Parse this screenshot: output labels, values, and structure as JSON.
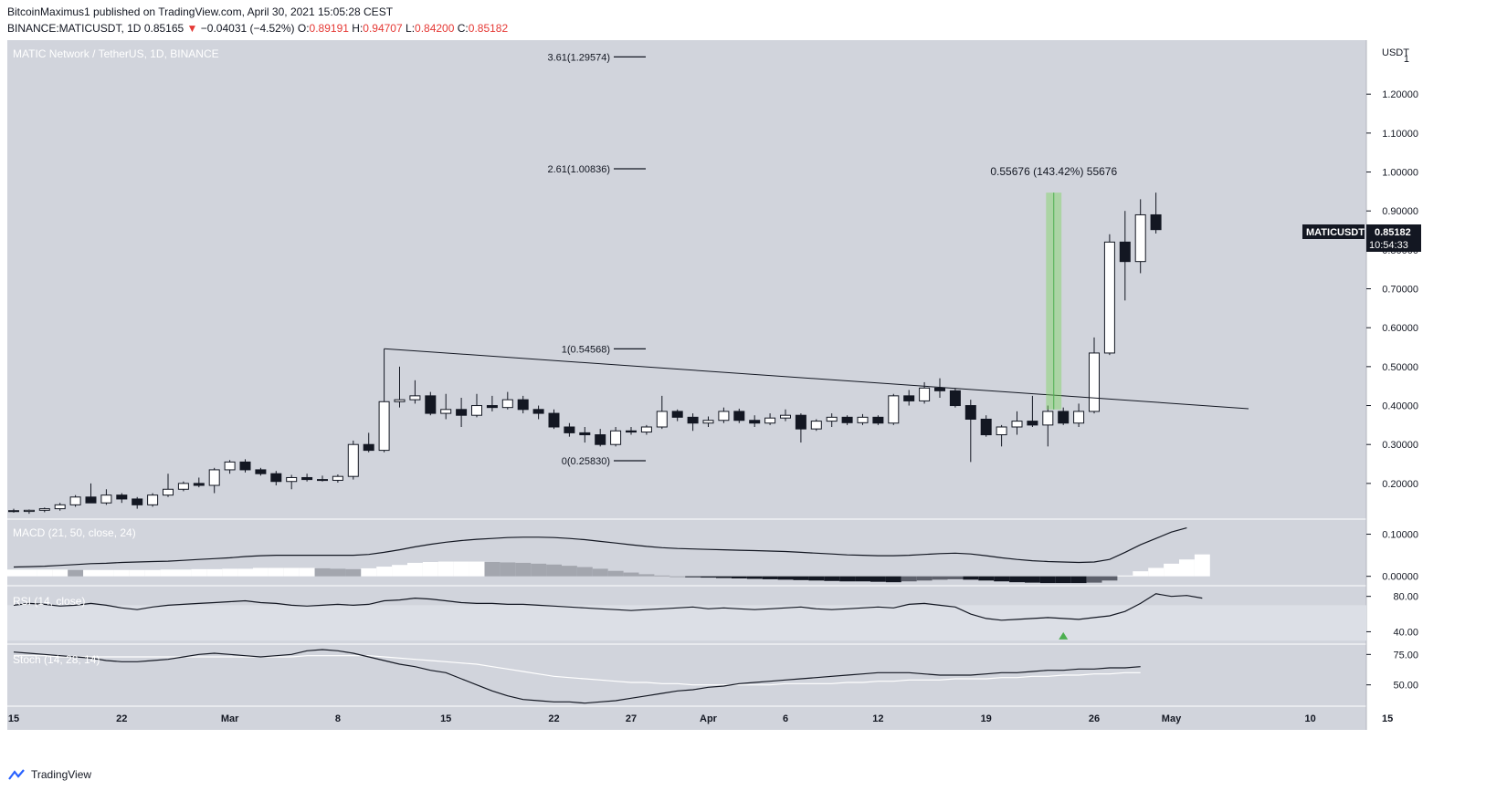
{
  "header": {
    "published_line": "BitcoinMaximus1 published on TradingView.com, April 30, 2021 15:05:28 CEST",
    "symbol_prefix": "BINANCE:MATICUSDT, 1D",
    "price": "0.85165",
    "change": "−0.04031 (−4.52%)",
    "o_label": "O:",
    "o_val": "0.89191",
    "h_label": "H:",
    "h_val": "0.94707",
    "l_label": "L:",
    "l_val": "0.84200",
    "c_label": "C:",
    "c_val": "0.85182"
  },
  "footer": {
    "brand": "TradingView"
  },
  "colors": {
    "pane_bg": "#d1d4dc",
    "up": "#ffffff",
    "down": "#131722",
    "accent_red": "#e53935",
    "green": "#7cd45f",
    "axis_bg": "#ffffff"
  },
  "chart_data": {
    "type": "candlestick",
    "title": "MATIC Network / TetherUS, 1D, BINANCE",
    "y_unit": "USDT",
    "ylim": [
      0.12,
      1.32
    ],
    "y_ticks": [
      "1.20000",
      "1.10000",
      "1.00000",
      "0.90000",
      "0.80000",
      "0.70000",
      "0.60000",
      "0.50000",
      "0.40000",
      "0.30000",
      "0.20000"
    ],
    "y_tick_values": [
      1.2,
      1.1,
      1.0,
      0.9,
      0.8,
      0.7,
      0.6,
      0.5,
      0.4,
      0.3,
      0.2
    ],
    "top_tick": "1",
    "x_ticks": [
      "15",
      "22",
      "Mar",
      "8",
      "15",
      "22",
      "27",
      "Apr",
      "6",
      "12",
      "19",
      "26",
      "May",
      "10",
      "15"
    ],
    "x_tick_day_index": [
      0,
      7,
      14,
      21,
      28,
      35,
      40,
      45,
      50,
      56,
      63,
      70,
      75,
      84,
      89
    ],
    "candles": [
      {
        "o": 0.13,
        "h": 0.135,
        "l": 0.125,
        "c": 0.128
      },
      {
        "o": 0.128,
        "h": 0.133,
        "l": 0.122,
        "c": 0.131
      },
      {
        "o": 0.131,
        "h": 0.138,
        "l": 0.126,
        "c": 0.135
      },
      {
        "o": 0.135,
        "h": 0.15,
        "l": 0.13,
        "c": 0.145
      },
      {
        "o": 0.145,
        "h": 0.17,
        "l": 0.14,
        "c": 0.165
      },
      {
        "o": 0.165,
        "h": 0.2,
        "l": 0.155,
        "c": 0.15
      },
      {
        "o": 0.15,
        "h": 0.185,
        "l": 0.145,
        "c": 0.17
      },
      {
        "o": 0.17,
        "h": 0.175,
        "l": 0.15,
        "c": 0.16
      },
      {
        "o": 0.16,
        "h": 0.165,
        "l": 0.135,
        "c": 0.145
      },
      {
        "o": 0.145,
        "h": 0.175,
        "l": 0.14,
        "c": 0.17
      },
      {
        "o": 0.17,
        "h": 0.225,
        "l": 0.165,
        "c": 0.185
      },
      {
        "o": 0.185,
        "h": 0.205,
        "l": 0.18,
        "c": 0.2
      },
      {
        "o": 0.2,
        "h": 0.215,
        "l": 0.19,
        "c": 0.195
      },
      {
        "o": 0.195,
        "h": 0.24,
        "l": 0.175,
        "c": 0.235
      },
      {
        "o": 0.235,
        "h": 0.26,
        "l": 0.225,
        "c": 0.255
      },
      {
        "o": 0.255,
        "h": 0.262,
        "l": 0.228,
        "c": 0.235
      },
      {
        "o": 0.235,
        "h": 0.24,
        "l": 0.22,
        "c": 0.225
      },
      {
        "o": 0.225,
        "h": 0.232,
        "l": 0.195,
        "c": 0.205
      },
      {
        "o": 0.205,
        "h": 0.222,
        "l": 0.185,
        "c": 0.215
      },
      {
        "o": 0.215,
        "h": 0.225,
        "l": 0.205,
        "c": 0.21
      },
      {
        "o": 0.21,
        "h": 0.22,
        "l": 0.205,
        "c": 0.208
      },
      {
        "o": 0.208,
        "h": 0.223,
        "l": 0.202,
        "c": 0.218
      },
      {
        "o": 0.218,
        "h": 0.31,
        "l": 0.21,
        "c": 0.3
      },
      {
        "o": 0.3,
        "h": 0.33,
        "l": 0.28,
        "c": 0.285
      },
      {
        "o": 0.285,
        "h": 0.546,
        "l": 0.28,
        "c": 0.41
      },
      {
        "o": 0.41,
        "h": 0.5,
        "l": 0.395,
        "c": 0.415
      },
      {
        "o": 0.415,
        "h": 0.465,
        "l": 0.405,
        "c": 0.425
      },
      {
        "o": 0.425,
        "h": 0.435,
        "l": 0.375,
        "c": 0.38
      },
      {
        "o": 0.38,
        "h": 0.43,
        "l": 0.365,
        "c": 0.39
      },
      {
        "o": 0.39,
        "h": 0.42,
        "l": 0.345,
        "c": 0.375
      },
      {
        "o": 0.375,
        "h": 0.43,
        "l": 0.37,
        "c": 0.4
      },
      {
        "o": 0.4,
        "h": 0.425,
        "l": 0.385,
        "c": 0.395
      },
      {
        "o": 0.395,
        "h": 0.435,
        "l": 0.39,
        "c": 0.415
      },
      {
        "o": 0.415,
        "h": 0.425,
        "l": 0.38,
        "c": 0.39
      },
      {
        "o": 0.39,
        "h": 0.4,
        "l": 0.365,
        "c": 0.38
      },
      {
        "o": 0.38,
        "h": 0.39,
        "l": 0.34,
        "c": 0.345
      },
      {
        "o": 0.345,
        "h": 0.355,
        "l": 0.32,
        "c": 0.33
      },
      {
        "o": 0.33,
        "h": 0.345,
        "l": 0.305,
        "c": 0.325
      },
      {
        "o": 0.325,
        "h": 0.34,
        "l": 0.295,
        "c": 0.3
      },
      {
        "o": 0.3,
        "h": 0.345,
        "l": 0.295,
        "c": 0.335
      },
      {
        "o": 0.335,
        "h": 0.345,
        "l": 0.325,
        "c": 0.332
      },
      {
        "o": 0.332,
        "h": 0.35,
        "l": 0.325,
        "c": 0.345
      },
      {
        "o": 0.345,
        "h": 0.425,
        "l": 0.34,
        "c": 0.385
      },
      {
        "o": 0.385,
        "h": 0.39,
        "l": 0.36,
        "c": 0.37
      },
      {
        "o": 0.37,
        "h": 0.38,
        "l": 0.335,
        "c": 0.355
      },
      {
        "o": 0.355,
        "h": 0.372,
        "l": 0.345,
        "c": 0.362
      },
      {
        "o": 0.362,
        "h": 0.395,
        "l": 0.355,
        "c": 0.385
      },
      {
        "o": 0.385,
        "h": 0.392,
        "l": 0.355,
        "c": 0.362
      },
      {
        "o": 0.362,
        "h": 0.375,
        "l": 0.345,
        "c": 0.355
      },
      {
        "o": 0.355,
        "h": 0.38,
        "l": 0.35,
        "c": 0.368
      },
      {
        "o": 0.368,
        "h": 0.39,
        "l": 0.36,
        "c": 0.375
      },
      {
        "o": 0.375,
        "h": 0.38,
        "l": 0.305,
        "c": 0.34
      },
      {
        "o": 0.34,
        "h": 0.365,
        "l": 0.335,
        "c": 0.36
      },
      {
        "o": 0.36,
        "h": 0.38,
        "l": 0.345,
        "c": 0.37
      },
      {
        "o": 0.37,
        "h": 0.375,
        "l": 0.35,
        "c": 0.356
      },
      {
        "o": 0.356,
        "h": 0.378,
        "l": 0.35,
        "c": 0.37
      },
      {
        "o": 0.37,
        "h": 0.375,
        "l": 0.35,
        "c": 0.355
      },
      {
        "o": 0.355,
        "h": 0.43,
        "l": 0.35,
        "c": 0.425
      },
      {
        "o": 0.425,
        "h": 0.44,
        "l": 0.4,
        "c": 0.412
      },
      {
        "o": 0.412,
        "h": 0.46,
        "l": 0.405,
        "c": 0.445
      },
      {
        "o": 0.445,
        "h": 0.47,
        "l": 0.42,
        "c": 0.438
      },
      {
        "o": 0.438,
        "h": 0.445,
        "l": 0.395,
        "c": 0.4
      },
      {
        "o": 0.4,
        "h": 0.415,
        "l": 0.255,
        "c": 0.365
      },
      {
        "o": 0.365,
        "h": 0.375,
        "l": 0.32,
        "c": 0.325
      },
      {
        "o": 0.325,
        "h": 0.35,
        "l": 0.295,
        "c": 0.345
      },
      {
        "o": 0.345,
        "h": 0.385,
        "l": 0.325,
        "c": 0.36
      },
      {
        "o": 0.36,
        "h": 0.425,
        "l": 0.345,
        "c": 0.35
      },
      {
        "o": 0.35,
        "h": 0.4,
        "l": 0.295,
        "c": 0.385
      },
      {
        "o": 0.385,
        "h": 0.395,
        "l": 0.35,
        "c": 0.355
      },
      {
        "o": 0.355,
        "h": 0.405,
        "l": 0.345,
        "c": 0.385
      },
      {
        "o": 0.385,
        "h": 0.575,
        "l": 0.38,
        "c": 0.535
      },
      {
        "o": 0.535,
        "h": 0.84,
        "l": 0.53,
        "c": 0.82
      },
      {
        "o": 0.82,
        "h": 0.9,
        "l": 0.67,
        "c": 0.77
      },
      {
        "o": 0.77,
        "h": 0.93,
        "l": 0.74,
        "c": 0.89
      },
      {
        "o": 0.89,
        "h": 0.947,
        "l": 0.842,
        "c": 0.852
      }
    ],
    "fib_levels": [
      {
        "label": "3.61(1.29574)",
        "value": 1.29574
      },
      {
        "label": "2.61(1.00836)",
        "value": 1.00836
      },
      {
        "label": "1(0.54568)",
        "value": 0.54568
      },
      {
        "label": "0(0.25830)",
        "value": 0.2583
      }
    ],
    "trendline": {
      "from": {
        "day": 24,
        "price": 0.546
      },
      "to": {
        "day": 80,
        "price": 0.392
      }
    },
    "measure": {
      "label": "0.55676 (143.42%) 55676",
      "day_start": 67,
      "day_end": 68,
      "price_low": 0.39,
      "price_high": 0.947
    },
    "last_price_label": {
      "symbol": "MATICUSDT",
      "price": "0.85182",
      "countdown": "10:54:33"
    },
    "macd": {
      "label": "MACD (21, 50, close, 24)",
      "y_ticks": [
        "0.10000",
        "0.00000"
      ],
      "y_tick_values": [
        0.1,
        0.0
      ],
      "ylim": [
        -0.018,
        0.125
      ],
      "line": [
        0.022,
        0.023,
        0.024,
        0.026,
        0.028,
        0.03,
        0.031,
        0.033,
        0.034,
        0.035,
        0.036,
        0.038,
        0.04,
        0.042,
        0.044,
        0.047,
        0.049,
        0.05,
        0.05,
        0.05,
        0.05,
        0.05,
        0.05,
        0.052,
        0.057,
        0.063,
        0.07,
        0.076,
        0.081,
        0.085,
        0.088,
        0.09,
        0.092,
        0.093,
        0.093,
        0.092,
        0.09,
        0.087,
        0.083,
        0.079,
        0.075,
        0.071,
        0.068,
        0.066,
        0.065,
        0.064,
        0.063,
        0.062,
        0.061,
        0.06,
        0.059,
        0.057,
        0.055,
        0.053,
        0.051,
        0.05,
        0.049,
        0.049,
        0.05,
        0.052,
        0.054,
        0.055,
        0.053,
        0.049,
        0.044,
        0.04,
        0.037,
        0.035,
        0.034,
        0.033,
        0.034,
        0.04,
        0.057,
        0.075,
        0.09,
        0.105,
        0.115
      ],
      "hist": [
        0.016,
        0.016,
        0.016,
        0.016,
        0.015,
        0.015,
        0.015,
        0.015,
        0.015,
        0.015,
        0.016,
        0.016,
        0.017,
        0.017,
        0.018,
        0.018,
        0.02,
        0.02,
        0.02,
        0.02,
        0.019,
        0.018,
        0.017,
        0.019,
        0.023,
        0.027,
        0.032,
        0.034,
        0.035,
        0.035,
        0.035,
        0.034,
        0.033,
        0.032,
        0.03,
        0.028,
        0.025,
        0.022,
        0.018,
        0.013,
        0.009,
        0.005,
        0.002,
        0.0,
        -0.002,
        -0.003,
        -0.004,
        -0.005,
        -0.006,
        -0.007,
        -0.008,
        -0.009,
        -0.01,
        -0.011,
        -0.012,
        -0.012,
        -0.013,
        -0.014,
        -0.012,
        -0.01,
        -0.008,
        -0.007,
        -0.008,
        -0.01,
        -0.012,
        -0.014,
        -0.015,
        -0.016,
        -0.016,
        -0.016,
        -0.015,
        -0.01,
        0.002,
        0.012,
        0.02,
        0.03,
        0.04,
        0.052
      ]
    },
    "rsi": {
      "label": "RSI (14, close)",
      "y_ticks": [
        "80.00",
        "40.00"
      ],
      "y_tick_values": [
        80,
        40
      ],
      "ylim": [
        26,
        90
      ],
      "band": [
        30,
        70
      ],
      "values": [
        70,
        72,
        71,
        69,
        70,
        72,
        70,
        67,
        65,
        68,
        70,
        71,
        72,
        73,
        74,
        75,
        73,
        72,
        70,
        69,
        70,
        71,
        70,
        71,
        75,
        76,
        78,
        77,
        75,
        73,
        72,
        72,
        71,
        71,
        70,
        69,
        68,
        67,
        66,
        65,
        64,
        65,
        66,
        67,
        68,
        66,
        67,
        66,
        65,
        66,
        67,
        68,
        66,
        65,
        66,
        67,
        68,
        67,
        71,
        72,
        70,
        68,
        60,
        55,
        53,
        54,
        55,
        56,
        55,
        54,
        56,
        58,
        63,
        72,
        83,
        80,
        81,
        78
      ],
      "signal_day": 68
    },
    "stoch": {
      "label": "Stoch (14, 28, 14)",
      "y_ticks": [
        "75.00",
        "50.00"
      ],
      "y_tick_values": [
        75,
        50
      ],
      "ylim": [
        34,
        82
      ],
      "k": [
        77,
        76,
        75,
        74,
        73,
        72,
        70,
        69,
        69,
        70,
        71,
        73,
        75,
        76,
        75,
        74,
        73,
        74,
        75,
        78,
        79,
        78,
        76,
        73,
        70,
        67,
        65,
        62,
        60,
        55,
        50,
        45,
        41,
        38,
        37,
        36,
        36,
        35,
        36,
        37,
        39,
        41,
        43,
        45,
        46,
        48,
        49,
        51,
        52,
        53,
        54,
        55,
        56,
        57,
        58,
        59,
        60,
        60,
        60,
        59,
        58,
        58,
        58,
        59,
        60,
        60,
        61,
        62,
        62,
        63,
        63,
        64,
        64,
        65
      ],
      "d": [
        74,
        74,
        74,
        73,
        73,
        73,
        73,
        73,
        73,
        73,
        73,
        73,
        73,
        73,
        73,
        73,
        73,
        73,
        73,
        74,
        74,
        74,
        74,
        74,
        73,
        72,
        71,
        70,
        69,
        68,
        67,
        65,
        63,
        61,
        59,
        57,
        56,
        55,
        54,
        53,
        52,
        52,
        51,
        51,
        50,
        50,
        50,
        50,
        50,
        50,
        51,
        51,
        51,
        51,
        52,
        52,
        53,
        53,
        54,
        54,
        54,
        55,
        55,
        55,
        56,
        56,
        57,
        57,
        58,
        58,
        59,
        59,
        60,
        60
      ]
    }
  }
}
